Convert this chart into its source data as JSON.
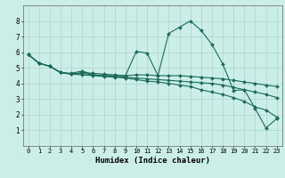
{
  "xlabel": "Humidex (Indice chaleur)",
  "background_color": "#cceee8",
  "grid_color": "#aad4ce",
  "line_color": "#1a6b5a",
  "xlim": [
    -0.5,
    23.5
  ],
  "ylim": [
    0,
    9
  ],
  "xticks": [
    0,
    1,
    2,
    3,
    4,
    5,
    6,
    7,
    8,
    9,
    10,
    11,
    12,
    13,
    14,
    15,
    16,
    17,
    18,
    19,
    20,
    21,
    22,
    23
  ],
  "yticks": [
    1,
    2,
    3,
    4,
    5,
    6,
    7,
    8
  ],
  "series": [
    [
      5.85,
      5.3,
      5.1,
      4.7,
      4.65,
      4.8,
      4.55,
      4.5,
      4.5,
      4.5,
      6.05,
      5.95,
      4.5,
      7.2,
      7.6,
      8.0,
      7.4,
      6.5,
      5.25,
      3.55,
      3.6,
      2.4,
      1.15,
      1.75
    ],
    [
      5.85,
      5.3,
      5.1,
      4.7,
      4.6,
      4.7,
      4.65,
      4.6,
      4.55,
      4.5,
      4.55,
      4.55,
      4.5,
      4.5,
      4.5,
      4.45,
      4.4,
      4.35,
      4.3,
      4.2,
      4.1,
      4.0,
      3.9,
      3.8
    ],
    [
      5.85,
      5.3,
      5.1,
      4.7,
      4.6,
      4.65,
      4.55,
      4.5,
      4.45,
      4.4,
      4.35,
      4.3,
      4.25,
      4.2,
      4.15,
      4.1,
      4.05,
      4.0,
      3.9,
      3.75,
      3.6,
      3.45,
      3.3,
      3.1
    ],
    [
      5.85,
      5.3,
      5.1,
      4.7,
      4.6,
      4.55,
      4.5,
      4.45,
      4.4,
      4.35,
      4.25,
      4.15,
      4.1,
      4.0,
      3.9,
      3.8,
      3.6,
      3.45,
      3.3,
      3.1,
      2.85,
      2.5,
      2.3,
      1.85
    ]
  ]
}
